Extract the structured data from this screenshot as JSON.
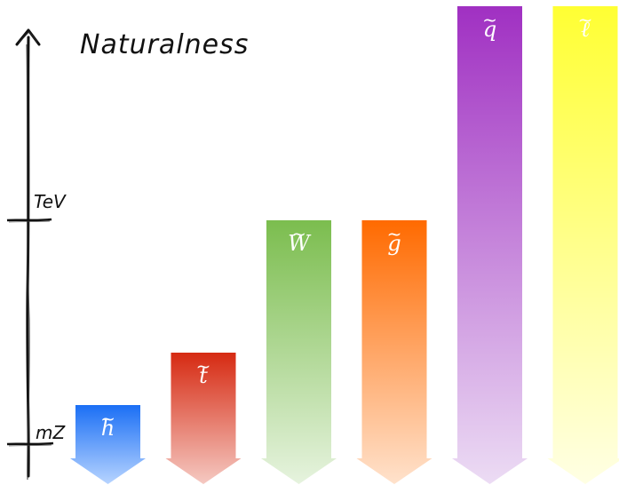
{
  "title": "Naturalness",
  "axis": {
    "ticks": [
      {
        "label": "TeV",
        "level": "tev"
      },
      {
        "label": "mZ",
        "level": "mz"
      }
    ]
  },
  "columns": [
    {
      "id": "higgsino",
      "symbol": "h",
      "top": "just-above-mz",
      "color_top": "#1b6ff5",
      "color_bottom": "#b7d4ff"
    },
    {
      "id": "stop",
      "symbol": "t",
      "top": "below-tev",
      "color_top": "#d62a12",
      "color_bottom": "#f5c9c2"
    },
    {
      "id": "wino",
      "symbol": "W",
      "top": "tev",
      "color_top": "#7bbd4e",
      "color_bottom": "#e6f3de"
    },
    {
      "id": "gluino",
      "symbol": "g",
      "top": "tev",
      "color_top": "#ff6a00",
      "color_bottom": "#ffe2cc"
    },
    {
      "id": "squark",
      "symbol": "q",
      "top": "top",
      "color_top": "#a030c2",
      "color_bottom": "#ecdcf4"
    },
    {
      "id": "slepton",
      "symbol": "ℓ",
      "top": "top",
      "color_top": "#ffff33",
      "color_bottom": "#ffffe4"
    }
  ]
}
